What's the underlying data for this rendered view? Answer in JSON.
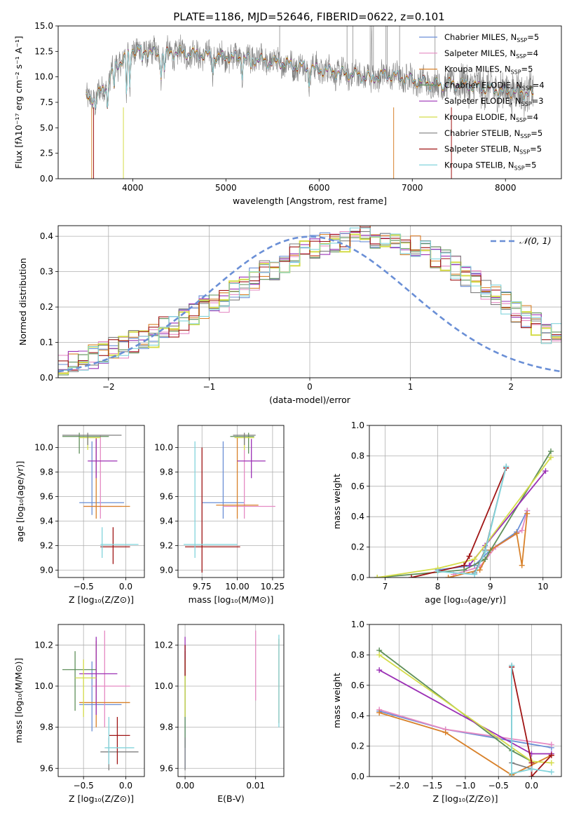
{
  "figure_title": "PLATE=1186, MJD=52646, FIBERID=0622, z=0.101",
  "series_colors": [
    "#6a8fd6",
    "#e58ac3",
    "#d8812a",
    "#5f8f5a",
    "#9b30b5",
    "#d4dc49",
    "#7f7f7f",
    "#a01515",
    "#82d4dc"
  ],
  "chart_data": [
    {
      "id": "spectrum",
      "type": "line",
      "title": "PLATE=1186, MJD=52646, FIBERID=0622, z=0.101",
      "xlabel": "wavelength [Angstrom, rest frame]",
      "ylabel": "Flux [fλ10⁻¹⁷ erg cm⁻² s⁻¹ A⁻¹]",
      "xlim": [
        3200,
        8600
      ],
      "ylim": [
        0,
        15
      ],
      "xticks": [
        "4000",
        "5000",
        "6000",
        "7000",
        "8000"
      ],
      "yticks": [
        "0.0",
        "2.5",
        "5.0",
        "7.5",
        "10.0",
        "12.5",
        "15.0"
      ],
      "legend_position": "upper right",
      "legend": [
        "Chabrier MILES, N_SSP=5",
        "Salpeter MILES, N_SSP=4",
        "Kroupa MILES, N_SSP=5",
        "Chabrier ELODIE, N_SSP=4",
        "Salpeter ELODIE, N_SSP=3",
        "Kroupa ELODIE, N_SSP=4",
        "Chabrier STELIB, N_SSP=5",
        "Salpeter STELIB, N_SSP=5",
        "Kroupa STELIB, N_SSP=5"
      ],
      "continuum": [
        [
          3500,
          7.8
        ],
        [
          3600,
          8.0
        ],
        [
          3700,
          8.9
        ],
        [
          3800,
          10.8
        ],
        [
          3900,
          11.8
        ],
        [
          4000,
          12.7
        ],
        [
          4100,
          12.6
        ],
        [
          4200,
          12.4
        ],
        [
          4300,
          12.1
        ],
        [
          4400,
          12.3
        ],
        [
          4500,
          12.4
        ],
        [
          4600,
          12.3
        ],
        [
          4700,
          12.2
        ],
        [
          4800,
          12.1
        ],
        [
          4900,
          11.9
        ],
        [
          5000,
          12.0
        ],
        [
          5100,
          11.9
        ],
        [
          5200,
          11.8
        ],
        [
          5300,
          11.7
        ],
        [
          5400,
          11.6
        ],
        [
          5500,
          11.4
        ],
        [
          5600,
          11.4
        ],
        [
          5700,
          11.2
        ],
        [
          5800,
          11.0
        ],
        [
          5900,
          10.9
        ],
        [
          6000,
          10.7
        ],
        [
          6100,
          10.6
        ],
        [
          6200,
          10.4
        ],
        [
          6300,
          10.3
        ],
        [
          6400,
          10.2
        ],
        [
          6500,
          10.0
        ],
        [
          6600,
          10.0
        ],
        [
          6700,
          10.2
        ],
        [
          6800,
          10.1
        ],
        [
          6900,
          9.9
        ],
        [
          7000,
          9.7
        ],
        [
          7100,
          9.5
        ],
        [
          7200,
          9.3
        ],
        [
          7300,
          9.2
        ],
        [
          7400,
          9.3
        ],
        [
          7500,
          9.3
        ],
        [
          7600,
          9.2
        ],
        [
          7700,
          9.0
        ],
        [
          7800,
          8.9
        ],
        [
          7900,
          8.7
        ],
        [
          8000,
          8.6
        ],
        [
          8100,
          8.5
        ],
        [
          8200,
          8.4
        ],
        [
          8300,
          8.3
        ]
      ]
    },
    {
      "id": "residuals",
      "type": "histogram",
      "xlabel": "(data-model)/error",
      "ylabel": "Normed distribution",
      "xlim": [
        -2.5,
        2.5
      ],
      "ylim": [
        0,
        0.43
      ],
      "xticks": [
        "−2",
        "−1",
        "0",
        "1",
        "2"
      ],
      "yticks": [
        "0.0",
        "0.1",
        "0.2",
        "0.3",
        "0.4"
      ],
      "grid": true,
      "legend": [
        "𝒩(0, 1)"
      ],
      "legend_position": "upper right",
      "reference_curve": "normal(0,1)",
      "bin_width": 0.1,
      "bin_start": -2.5,
      "histogram_values": [
        0.04,
        0.045,
        0.05,
        0.06,
        0.07,
        0.08,
        0.09,
        0.1,
        0.11,
        0.12,
        0.14,
        0.15,
        0.16,
        0.18,
        0.2,
        0.21,
        0.22,
        0.24,
        0.26,
        0.28,
        0.3,
        0.31,
        0.33,
        0.35,
        0.36,
        0.37,
        0.38,
        0.39,
        0.39,
        0.39,
        0.4,
        0.4,
        0.39,
        0.39,
        0.38,
        0.37,
        0.36,
        0.34,
        0.33,
        0.31,
        0.29,
        0.27,
        0.25,
        0.23,
        0.21,
        0.19,
        0.17,
        0.15,
        0.13,
        0.12
      ]
    },
    {
      "id": "age-vs-Z",
      "type": "errorbar",
      "xlabel": "Z [log₁₀(Z/Z⊙)]",
      "ylabel": "age  [log₁₀(age/yr)]",
      "xlim": [
        -0.8,
        0.22
      ],
      "ylim": [
        8.94,
        10.18
      ],
      "xticks": [
        "−0.5",
        "0.0"
      ],
      "yticks": [
        "9.0",
        "9.2",
        "9.4",
        "9.6",
        "9.8",
        "10.0"
      ],
      "grid": true,
      "points": [
        {
          "s": 0,
          "x": -0.4,
          "xe": [
            -0.55,
            -0.02
          ],
          "y": 9.55,
          "ye": [
            9.45,
            10.05
          ]
        },
        {
          "s": 1,
          "x": -0.3,
          "xe": [
            -0.5,
            -0.05
          ],
          "y": 9.52,
          "ye": [
            9.42,
            10.1
          ]
        },
        {
          "s": 2,
          "x": -0.35,
          "xe": [
            -0.5,
            0.05
          ],
          "y": 9.52,
          "ye": [
            9.42,
            10.08
          ]
        },
        {
          "s": 3,
          "x": -0.55,
          "xe": [
            -0.75,
            -0.2
          ],
          "y": 10.09,
          "ye": [
            9.95,
            10.12
          ]
        },
        {
          "s": 4,
          "x": -0.35,
          "xe": [
            -0.45,
            -0.1
          ],
          "y": 9.89,
          "ye": [
            9.75,
            10.07
          ]
        },
        {
          "s": 5,
          "x": -0.45,
          "xe": [
            -0.55,
            -0.3
          ],
          "y": 10.08,
          "ye": [
            9.98,
            10.11
          ]
        },
        {
          "s": 6,
          "x": -0.45,
          "xe": [
            -0.75,
            -0.05
          ],
          "y": 10.1,
          "ye": [
            10.02,
            10.12
          ]
        },
        {
          "s": 7,
          "x": -0.15,
          "xe": [
            -0.3,
            0.05
          ],
          "y": 9.19,
          "ye": [
            9.05,
            9.35
          ]
        },
        {
          "s": 8,
          "x": -0.28,
          "xe": [
            -0.3,
            0.15
          ],
          "y": 9.21,
          "ye": [
            9.1,
            9.35
          ]
        }
      ]
    },
    {
      "id": "age-vs-mass",
      "type": "errorbar",
      "xlabel": "mass [log₁₀(M/M⊙)]",
      "ylabel": "",
      "xlim": [
        9.58,
        10.33
      ],
      "ylim": [
        8.94,
        10.18
      ],
      "xticks": [
        "9.75",
        "10.00",
        "10.25"
      ],
      "yticks": [
        "9.0",
        "9.2",
        "9.4",
        "9.6",
        "9.8",
        "10.0"
      ],
      "grid": true,
      "points": [
        {
          "s": 0,
          "x": 9.9,
          "xe": [
            9.75,
            10.05
          ],
          "y": 9.55,
          "ye": [
            9.42,
            10.05
          ]
        },
        {
          "s": 1,
          "x": 10.05,
          "xe": [
            9.9,
            10.27
          ],
          "y": 9.52,
          "ye": [
            9.42,
            10.1
          ]
        },
        {
          "s": 2,
          "x": 10.0,
          "xe": [
            9.85,
            10.15
          ],
          "y": 9.53,
          "ye": [
            9.42,
            10.08
          ]
        },
        {
          "s": 3,
          "x": 10.08,
          "xe": [
            9.95,
            10.12
          ],
          "y": 10.09,
          "ye": [
            9.95,
            10.12
          ]
        },
        {
          "s": 4,
          "x": 10.1,
          "xe": [
            10.0,
            10.2
          ],
          "y": 9.89,
          "ye": [
            9.75,
            10.07
          ]
        },
        {
          "s": 5,
          "x": 10.05,
          "xe": [
            9.98,
            10.12
          ],
          "y": 10.08,
          "ye": [
            9.98,
            10.11
          ]
        },
        {
          "s": 6,
          "x": 10.05,
          "xe": [
            9.97,
            10.13
          ],
          "y": 10.1,
          "ye": [
            10.02,
            10.12
          ]
        },
        {
          "s": 7,
          "x": 9.75,
          "xe": [
            9.63,
            10.02
          ],
          "y": 9.19,
          "ye": [
            8.98,
            10.0
          ]
        },
        {
          "s": 8,
          "x": 9.7,
          "xe": [
            9.62,
            10.0
          ],
          "y": 9.21,
          "ye": [
            9.1,
            10.05
          ]
        }
      ]
    },
    {
      "id": "weight-vs-age",
      "type": "line",
      "xlabel": "age  [log₁₀(age/yr)]",
      "ylabel": "mass weight",
      "xlim": [
        6.7,
        10.35
      ],
      "ylim": [
        0,
        1
      ],
      "xticks": [
        "7",
        "8",
        "9",
        "10"
      ],
      "yticks": [
        "0.0",
        "0.2",
        "0.4",
        "0.6",
        "0.8",
        "1.0"
      ],
      "grid": true,
      "series": [
        {
          "s": 0,
          "x": [
            8.0,
            8.7,
            9.0,
            9.5,
            9.7
          ],
          "y": [
            0.05,
            0.08,
            0.18,
            0.3,
            0.44
          ]
        },
        {
          "s": 1,
          "x": [
            8.3,
            8.8,
            9.1,
            9.6,
            9.7
          ],
          "y": [
            0.02,
            0.07,
            0.2,
            0.31,
            0.44
          ]
        },
        {
          "s": 2,
          "x": [
            8.2,
            8.8,
            9.0,
            9.5,
            9.6,
            9.7
          ],
          "y": [
            0.0,
            0.05,
            0.18,
            0.29,
            0.08,
            0.42
          ]
        },
        {
          "s": 3,
          "x": [
            6.85,
            8.5,
            8.9,
            10.15
          ],
          "y": [
            0.0,
            0.05,
            0.12,
            0.83
          ]
        },
        {
          "s": 4,
          "x": [
            8.6,
            8.9,
            10.05
          ],
          "y": [
            0.08,
            0.21,
            0.7
          ]
        },
        {
          "s": 5,
          "x": [
            6.85,
            8.0,
            8.7,
            10.15
          ],
          "y": [
            0.0,
            0.06,
            0.12,
            0.79
          ]
        },
        {
          "s": 6,
          "x": [
            8.7,
            8.9,
            9.3
          ],
          "y": [
            0.03,
            0.18,
            0.73
          ]
        },
        {
          "s": 7,
          "x": [
            7.5,
            8.5,
            8.6,
            9.3
          ],
          "y": [
            0.0,
            0.08,
            0.14,
            0.72
          ]
        },
        {
          "s": 8,
          "x": [
            8.0,
            8.7,
            8.9,
            9.3
          ],
          "y": [
            0.04,
            0.02,
            0.17,
            0.73
          ]
        }
      ]
    },
    {
      "id": "mass-vs-Z",
      "type": "errorbar",
      "xlabel": "Z [log₁₀(Z/Z⊙)]",
      "ylabel": "mass [log₁₀(M/M⊙)]",
      "xlim": [
        -0.8,
        0.22
      ],
      "ylim": [
        9.56,
        10.3
      ],
      "xticks": [
        "−0.5",
        "0.0"
      ],
      "yticks": [
        "9.6",
        "9.8",
        "10.0",
        "10.2"
      ],
      "grid": true,
      "points": [
        {
          "s": 0,
          "x": -0.4,
          "xe": [
            -0.55,
            -0.05
          ],
          "y": 9.91,
          "ye": [
            9.78,
            10.12
          ]
        },
        {
          "s": 1,
          "x": -0.25,
          "xe": [
            -0.4,
            0.05
          ],
          "y": 10.0,
          "ye": [
            9.8,
            10.27
          ]
        },
        {
          "s": 2,
          "x": -0.35,
          "xe": [
            -0.55,
            0.05
          ],
          "y": 9.92,
          "ye": [
            9.8,
            10.22
          ]
        },
        {
          "s": 3,
          "x": -0.6,
          "xe": [
            -0.75,
            -0.35
          ],
          "y": 10.08,
          "ye": [
            9.88,
            10.17
          ]
        },
        {
          "s": 4,
          "x": -0.35,
          "xe": [
            -0.55,
            -0.1
          ],
          "y": 10.06,
          "ye": [
            9.86,
            10.24
          ]
        },
        {
          "s": 5,
          "x": -0.5,
          "xe": [
            -0.6,
            -0.35
          ],
          "y": 10.04,
          "ye": [
            9.85,
            10.13
          ]
        },
        {
          "s": 6,
          "x": -0.2,
          "xe": [
            -0.3,
            0.15
          ],
          "y": 9.68,
          "ye": [
            9.59,
            9.75
          ]
        },
        {
          "s": 7,
          "x": -0.1,
          "xe": [
            -0.2,
            0.05
          ],
          "y": 9.76,
          "ye": [
            9.62,
            9.85
          ]
        },
        {
          "s": 8,
          "x": -0.2,
          "xe": [
            -0.25,
            0.1
          ],
          "y": 9.7,
          "ye": [
            9.62,
            9.85
          ]
        }
      ]
    },
    {
      "id": "mass-vs-EBV",
      "type": "errorbar",
      "xlabel": "E(B-V)",
      "ylabel": "",
      "xlim": [
        -0.001,
        0.014
      ],
      "ylim": [
        9.56,
        10.3
      ],
      "xticks": [
        "0.00",
        "0.01"
      ],
      "yticks": [
        "9.6",
        "9.8",
        "10.0",
        "10.2"
      ],
      "grid": true,
      "points": [
        {
          "s": 0,
          "x": 0.0,
          "ye": [
            9.6,
            10.2
          ]
        },
        {
          "s": 1,
          "x": 0.01,
          "ye": [
            9.93,
            10.27
          ]
        },
        {
          "s": 2,
          "x": 0.0133,
          "ye": [
            9.82,
            10.23
          ]
        },
        {
          "s": 3,
          "x": 0.0,
          "ye": [
            9.7,
            10.17
          ]
        },
        {
          "s": 4,
          "x": 0.0,
          "ye": [
            10.05,
            10.24
          ]
        },
        {
          "s": 5,
          "x": 0.0,
          "ye": [
            9.85,
            10.13
          ]
        },
        {
          "s": 6,
          "x": 0.0,
          "ye": [
            9.59,
            9.75
          ]
        },
        {
          "s": 7,
          "x": 0.0,
          "ye": [
            10.05,
            10.2
          ]
        },
        {
          "s": 8,
          "x": 0.0133,
          "ye": [
            9.8,
            10.25
          ]
        }
      ]
    },
    {
      "id": "weight-vs-Z",
      "type": "line",
      "xlabel": "Z [log₁₀(Z/Z⊙)]",
      "ylabel": "mass weight",
      "xlim": [
        -2.45,
        0.45
      ],
      "ylim": [
        0,
        1
      ],
      "xticks": [
        "−2.0",
        "−1.5",
        "−1.0",
        "−0.5",
        "0.0"
      ],
      "yticks": [
        "0.0",
        "0.2",
        "0.4",
        "0.6",
        "0.8",
        "1.0"
      ],
      "grid": true,
      "series": [
        {
          "s": 0,
          "x": [
            -2.3,
            -1.3,
            0.3
          ],
          "y": [
            0.43,
            0.31,
            0.19
          ]
        },
        {
          "s": 1,
          "x": [
            -2.3,
            -1.3,
            0.3
          ],
          "y": [
            0.44,
            0.31,
            0.21
          ]
        },
        {
          "s": 2,
          "x": [
            -2.3,
            -1.3,
            -0.3,
            0.3
          ],
          "y": [
            0.42,
            0.29,
            0.01,
            0.14
          ]
        },
        {
          "s": 3,
          "x": [
            -2.3,
            -0.3,
            0.0
          ],
          "y": [
            0.83,
            0.17,
            0.1
          ]
        },
        {
          "s": 4,
          "x": [
            -2.3,
            0.0,
            0.3
          ],
          "y": [
            0.7,
            0.15,
            0.15
          ]
        },
        {
          "s": 5,
          "x": [
            -2.3,
            0.0,
            0.3
          ],
          "y": [
            0.8,
            0.1,
            0.09
          ]
        },
        {
          "s": 6,
          "x": [
            -0.3,
            -0.3,
            0.0
          ],
          "y": [
            0.73,
            0.09,
            0.05
          ]
        },
        {
          "s": 7,
          "x": [
            -0.3,
            0.0,
            0.0,
            0.3
          ],
          "y": [
            0.72,
            0.09,
            0.0,
            0.14
          ]
        },
        {
          "s": 8,
          "x": [
            -0.3,
            -0.3,
            0.0,
            0.3
          ],
          "y": [
            0.73,
            0.02,
            0.05,
            0.03
          ]
        }
      ]
    }
  ]
}
